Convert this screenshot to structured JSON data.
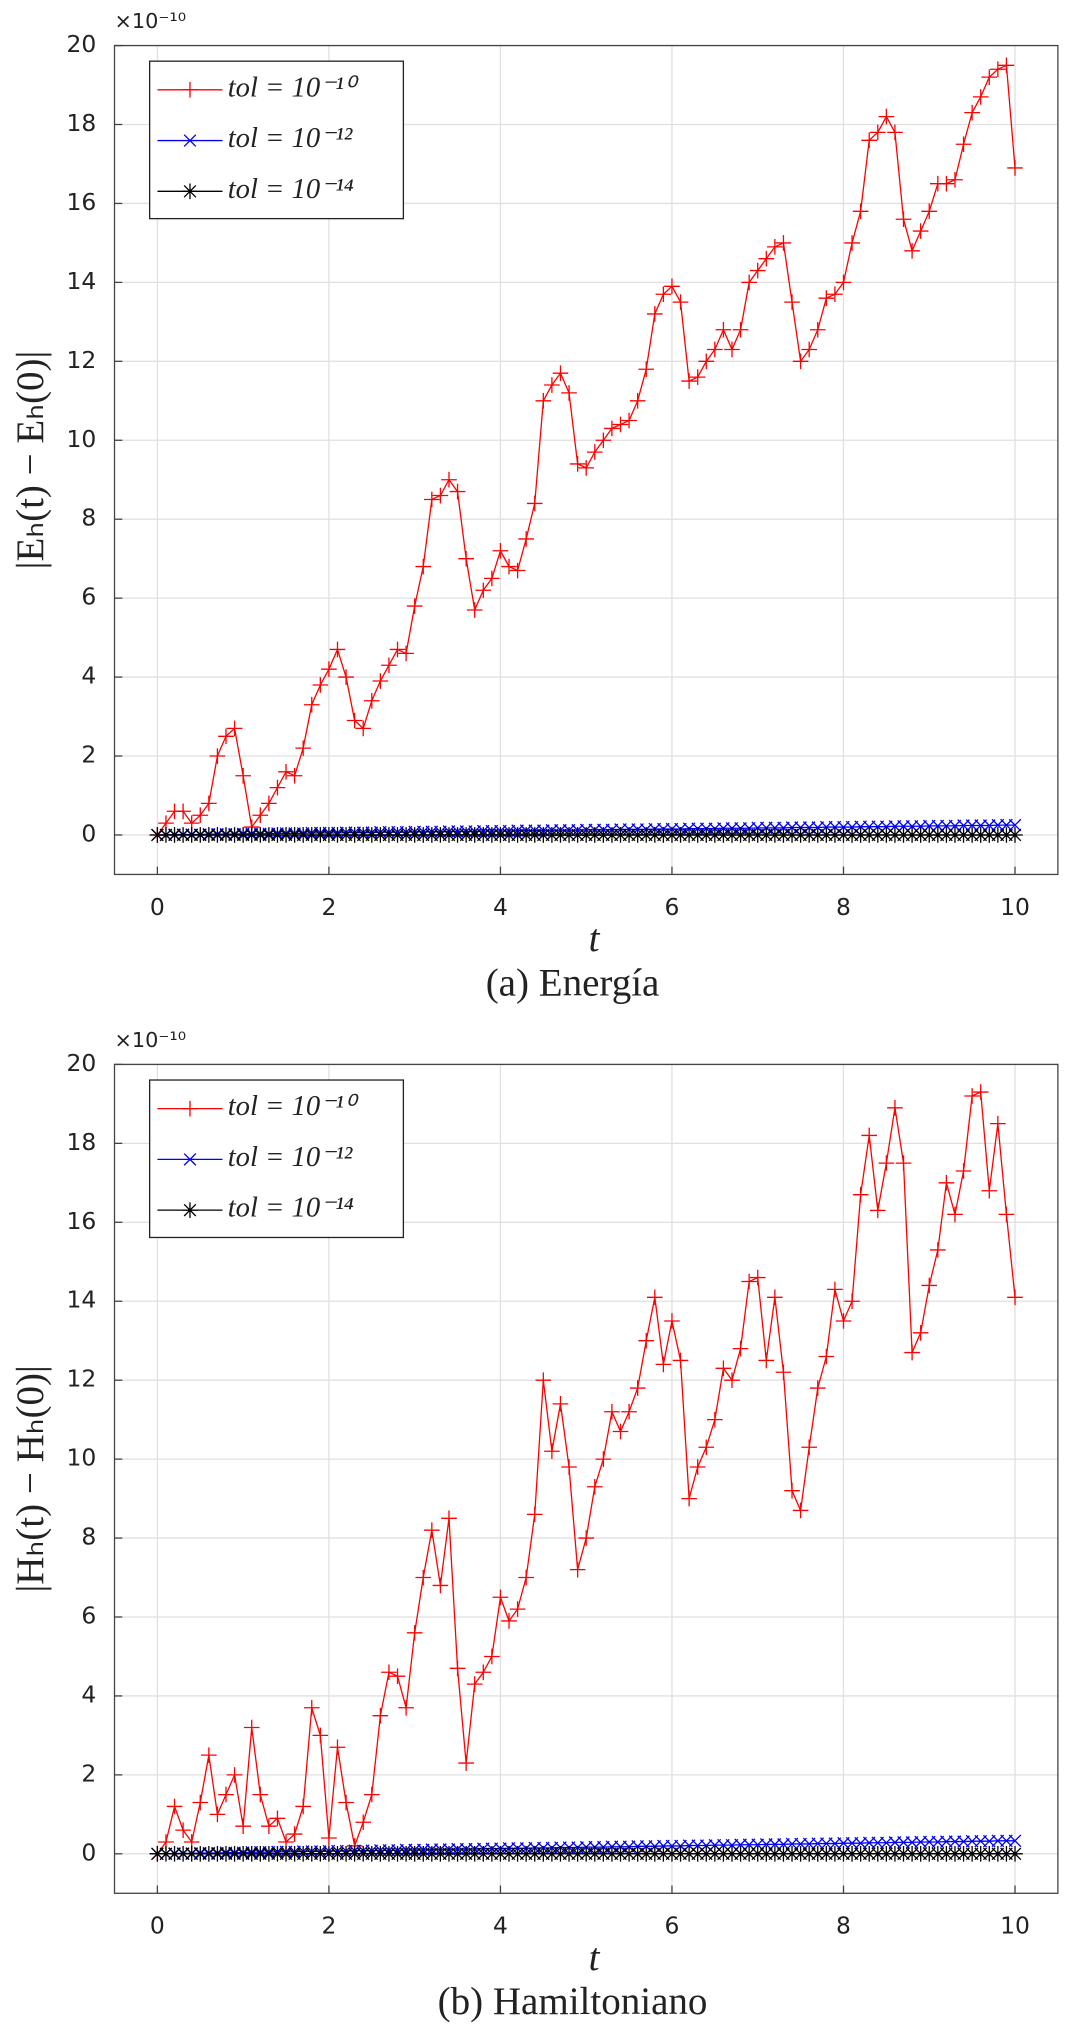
{
  "chart_data": [
    {
      "type": "line",
      "caption": "(a) Energía",
      "x_label": "t",
      "y_label": "|Eₕ(t) − Eₕ(0)|",
      "y_exponent": "×10⁻¹⁰",
      "xlim": [
        -0.5,
        10.5
      ],
      "ylim": [
        -1,
        20
      ],
      "xticks": [
        0,
        2,
        4,
        6,
        8,
        10
      ],
      "yticks": [
        0,
        2,
        4,
        6,
        8,
        10,
        12,
        14,
        16,
        18,
        20
      ],
      "grid": true,
      "legend": "upper left",
      "x": [
        0,
        0.1,
        0.2,
        0.3,
        0.4,
        0.5,
        0.6,
        0.7,
        0.8,
        0.9,
        1,
        1.1,
        1.2,
        1.3,
        1.4,
        1.5,
        1.6,
        1.7,
        1.8,
        1.9,
        2,
        2.1,
        2.2,
        2.3,
        2.4,
        2.5,
        2.6,
        2.7,
        2.8,
        2.9,
        3,
        3.1,
        3.2,
        3.3,
        3.4,
        3.5,
        3.6,
        3.7,
        3.8,
        3.9,
        4,
        4.1,
        4.2,
        4.3,
        4.4,
        4.5,
        4.6,
        4.7,
        4.8,
        4.9,
        5,
        5.1,
        5.2,
        5.3,
        5.4,
        5.5,
        5.6,
        5.7,
        5.8,
        5.9,
        6,
        6.1,
        6.2,
        6.3,
        6.4,
        6.5,
        6.6,
        6.7,
        6.8,
        6.9,
        7,
        7.1,
        7.2,
        7.3,
        7.4,
        7.5,
        7.6,
        7.7,
        7.8,
        7.9,
        8,
        8.1,
        8.2,
        8.3,
        8.4,
        8.5,
        8.6,
        8.7,
        8.8,
        8.9,
        9,
        9.1,
        9.2,
        9.3,
        9.4,
        9.5,
        9.6,
        9.7,
        9.8,
        9.9,
        10
      ],
      "series": [
        {
          "name": "tol = 10⁻¹⁰",
          "color": "#ff0000",
          "marker": "+",
          "values": [
            0,
            0.3,
            0.6,
            0.6,
            0.3,
            0.5,
            0.8,
            2.0,
            2.5,
            2.7,
            1.5,
            0.2,
            0.5,
            0.8,
            1.2,
            1.6,
            1.5,
            2.2,
            3.3,
            3.8,
            4.2,
            4.7,
            4.0,
            2.9,
            2.7,
            3.4,
            3.9,
            4.3,
            4.7,
            4.6,
            5.8,
            6.8,
            8.5,
            8.6,
            9.0,
            8.7,
            7.0,
            5.7,
            6.2,
            6.5,
            7.2,
            6.8,
            6.7,
            7.5,
            8.4,
            11.0,
            11.4,
            11.7,
            11.2,
            9.4,
            9.3,
            9.7,
            10.0,
            10.3,
            10.4,
            10.5,
            11.0,
            11.8,
            13.2,
            13.7,
            13.9,
            13.5,
            11.5,
            11.6,
            12.0,
            12.3,
            12.8,
            12.3,
            12.8,
            14.0,
            14.3,
            14.6,
            14.9,
            15.0,
            13.5,
            12.0,
            12.3,
            12.8,
            13.6,
            13.7,
            14.0,
            15.0,
            15.8,
            17.6,
            17.8,
            18.2,
            17.8,
            15.6,
            14.8,
            15.3,
            15.8,
            16.5,
            16.5,
            16.6,
            17.5,
            18.3,
            18.7,
            19.2,
            19.4,
            19.5,
            16.9
          ]
        },
        {
          "name": "tol = 10⁻¹²",
          "color": "#0000ff",
          "marker": "x",
          "values": [
            0,
            0,
            0.01,
            0.01,
            0.01,
            0.01,
            0.02,
            0.02,
            0.02,
            0.02,
            0.03,
            0.03,
            0.03,
            0.03,
            0.04,
            0.04,
            0.04,
            0.04,
            0.05,
            0.05,
            0.05,
            0.05,
            0.06,
            0.06,
            0.06,
            0.06,
            0.07,
            0.07,
            0.07,
            0.07,
            0.08,
            0.08,
            0.08,
            0.08,
            0.09,
            0.09,
            0.09,
            0.09,
            0.1,
            0.1,
            0.1,
            0.1,
            0.11,
            0.11,
            0.11,
            0.11,
            0.12,
            0.12,
            0.12,
            0.12,
            0.13,
            0.13,
            0.13,
            0.13,
            0.14,
            0.14,
            0.14,
            0.14,
            0.15,
            0.15,
            0.15,
            0.15,
            0.16,
            0.16,
            0.16,
            0.16,
            0.17,
            0.17,
            0.17,
            0.17,
            0.18,
            0.18,
            0.18,
            0.18,
            0.19,
            0.19,
            0.19,
            0.19,
            0.2,
            0.2,
            0.2,
            0.2,
            0.21,
            0.21,
            0.21,
            0.21,
            0.22,
            0.22,
            0.22,
            0.22,
            0.23,
            0.23,
            0.23,
            0.23,
            0.24,
            0.24,
            0.24,
            0.24,
            0.25,
            0.25,
            0.25
          ]
        },
        {
          "name": "tol = 10⁻¹⁴",
          "color": "#000000",
          "marker": "*",
          "values": [
            0,
            0,
            0,
            0,
            0,
            0,
            0,
            0,
            0,
            0,
            0,
            0,
            0,
            0,
            0,
            0,
            0,
            0,
            0,
            0,
            0,
            0,
            0,
            0,
            0,
            0,
            0,
            0,
            0,
            0,
            0,
            0,
            0,
            0,
            0,
            0,
            0,
            0,
            0,
            0,
            0,
            0,
            0,
            0,
            0,
            0,
            0,
            0,
            0,
            0,
            0,
            0,
            0,
            0,
            0,
            0,
            0,
            0,
            0,
            0,
            0,
            0,
            0,
            0,
            0,
            0,
            0,
            0,
            0,
            0,
            0,
            0,
            0,
            0,
            0,
            0,
            0,
            0,
            0,
            0,
            0,
            0,
            0,
            0,
            0,
            0,
            0,
            0,
            0,
            0,
            0,
            0,
            0,
            0,
            0,
            0,
            0,
            0,
            0,
            0,
            0
          ]
        }
      ]
    },
    {
      "type": "line",
      "caption": "(b) Hamiltoniano",
      "x_label": "t",
      "y_label": "|Hₕ(t) − Hₕ(0)|",
      "y_exponent": "×10⁻¹⁰",
      "xlim": [
        -0.5,
        10.5
      ],
      "ylim": [
        -1,
        20
      ],
      "xticks": [
        0,
        2,
        4,
        6,
        8,
        10
      ],
      "yticks": [
        0,
        2,
        4,
        6,
        8,
        10,
        12,
        14,
        16,
        18,
        20
      ],
      "grid": true,
      "legend": "upper left",
      "x": [
        0,
        0.1,
        0.2,
        0.3,
        0.4,
        0.5,
        0.6,
        0.7,
        0.8,
        0.9,
        1,
        1.1,
        1.2,
        1.3,
        1.4,
        1.5,
        1.6,
        1.7,
        1.8,
        1.9,
        2,
        2.1,
        2.2,
        2.3,
        2.4,
        2.5,
        2.6,
        2.7,
        2.8,
        2.9,
        3,
        3.1,
        3.2,
        3.3,
        3.4,
        3.5,
        3.6,
        3.7,
        3.8,
        3.9,
        4,
        4.1,
        4.2,
        4.3,
        4.4,
        4.5,
        4.6,
        4.7,
        4.8,
        4.9,
        5,
        5.1,
        5.2,
        5.3,
        5.4,
        5.5,
        5.6,
        5.7,
        5.8,
        5.9,
        6,
        6.1,
        6.2,
        6.3,
        6.4,
        6.5,
        6.6,
        6.7,
        6.8,
        6.9,
        7,
        7.1,
        7.2,
        7.3,
        7.4,
        7.5,
        7.6,
        7.7,
        7.8,
        7.9,
        8,
        8.1,
        8.2,
        8.3,
        8.4,
        8.5,
        8.6,
        8.7,
        8.8,
        8.9,
        9,
        9.1,
        9.2,
        9.3,
        9.4,
        9.5,
        9.6,
        9.7,
        9.8,
        9.9,
        10
      ],
      "series": [
        {
          "name": "tol = 10⁻¹⁰",
          "color": "#ff0000",
          "marker": "+",
          "values": [
            0,
            0.3,
            1.2,
            0.6,
            0.3,
            1.3,
            2.5,
            1.0,
            1.5,
            2.0,
            0.7,
            3.2,
            1.5,
            0.7,
            0.9,
            0.3,
            0.5,
            1.2,
            3.7,
            3.0,
            0.4,
            2.7,
            1.3,
            0.2,
            0.8,
            1.5,
            3.5,
            4.6,
            4.5,
            3.7,
            5.6,
            7.0,
            8.2,
            6.8,
            8.5,
            4.7,
            2.3,
            4.3,
            4.6,
            5.0,
            6.5,
            5.9,
            6.2,
            7.0,
            8.6,
            12.0,
            10.2,
            11.4,
            9.8,
            7.2,
            8.0,
            9.3,
            10.0,
            11.2,
            10.7,
            11.2,
            11.8,
            13.0,
            14.1,
            12.4,
            13.5,
            12.5,
            9.0,
            9.8,
            10.3,
            11.0,
            12.3,
            12.0,
            12.8,
            14.5,
            14.6,
            12.5,
            14.1,
            12.2,
            9.2,
            8.7,
            10.3,
            11.8,
            12.6,
            14.3,
            13.5,
            14.0,
            16.7,
            18.2,
            16.3,
            17.5,
            18.9,
            17.5,
            12.7,
            13.2,
            14.4,
            15.3,
            17.0,
            16.2,
            17.3,
            19.2,
            19.3,
            16.8,
            18.5,
            16.2,
            14.1
          ]
        },
        {
          "name": "tol = 10⁻¹²",
          "color": "#0000ff",
          "marker": "x",
          "values": [
            0,
            0,
            0.01,
            0.01,
            0.01,
            0.02,
            0.02,
            0.02,
            0.03,
            0.03,
            0.03,
            0.04,
            0.04,
            0.04,
            0.05,
            0.05,
            0.05,
            0.06,
            0.06,
            0.06,
            0.07,
            0.07,
            0.07,
            0.08,
            0.08,
            0.08,
            0.09,
            0.09,
            0.09,
            0.1,
            0.1,
            0.1,
            0.11,
            0.11,
            0.11,
            0.12,
            0.12,
            0.12,
            0.13,
            0.13,
            0.13,
            0.14,
            0.14,
            0.14,
            0.15,
            0.15,
            0.15,
            0.16,
            0.16,
            0.16,
            0.17,
            0.17,
            0.17,
            0.18,
            0.18,
            0.18,
            0.19,
            0.19,
            0.19,
            0.2,
            0.2,
            0.2,
            0.21,
            0.21,
            0.21,
            0.22,
            0.22,
            0.22,
            0.23,
            0.23,
            0.23,
            0.24,
            0.24,
            0.24,
            0.25,
            0.25,
            0.25,
            0.26,
            0.26,
            0.26,
            0.27,
            0.27,
            0.27,
            0.28,
            0.28,
            0.28,
            0.29,
            0.29,
            0.29,
            0.3,
            0.3,
            0.3,
            0.31,
            0.31,
            0.31,
            0.32,
            0.32,
            0.32,
            0.33,
            0.33,
            0.33
          ]
        },
        {
          "name": "tol = 10⁻¹⁴",
          "color": "#000000",
          "marker": "*",
          "values": [
            0,
            0,
            0,
            0,
            0,
            0,
            0,
            0,
            0,
            0,
            0,
            0,
            0,
            0,
            0,
            0,
            0,
            0,
            0,
            0,
            0,
            0,
            0,
            0,
            0,
            0,
            0,
            0,
            0,
            0,
            0,
            0,
            0,
            0,
            0,
            0,
            0,
            0,
            0,
            0,
            0,
            0,
            0,
            0,
            0,
            0,
            0,
            0,
            0,
            0,
            0,
            0,
            0,
            0,
            0,
            0,
            0,
            0,
            0,
            0,
            0,
            0,
            0,
            0,
            0,
            0,
            0,
            0,
            0,
            0,
            0,
            0,
            0,
            0,
            0,
            0,
            0,
            0,
            0,
            0,
            0,
            0,
            0,
            0,
            0,
            0,
            0,
            0,
            0,
            0,
            0,
            0,
            0,
            0,
            0,
            0,
            0,
            0,
            0,
            0,
            0
          ]
        }
      ]
    }
  ]
}
